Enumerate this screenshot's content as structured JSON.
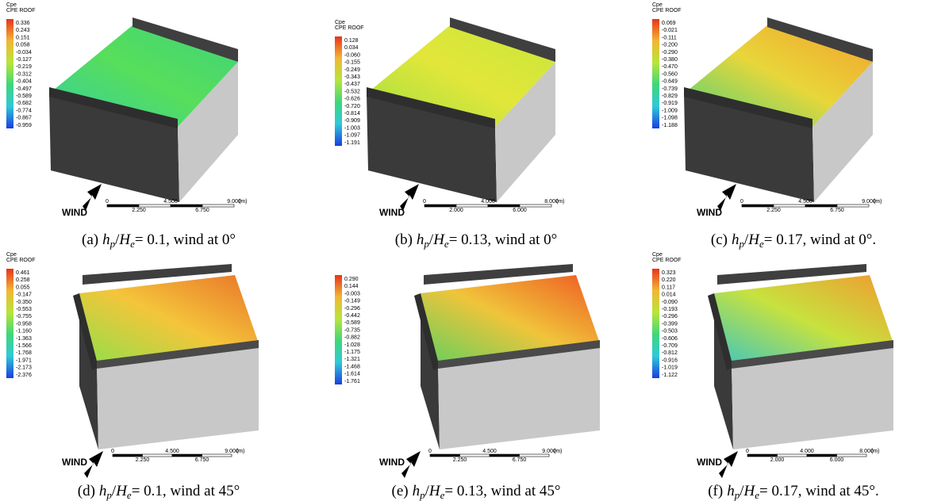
{
  "panels": [
    {
      "legend": {
        "header": [
          "Cpe",
          "CPE ROOF"
        ],
        "labels": [
          "0.336",
          "0.243",
          "0.151",
          "0.058",
          "-0.034",
          "-0.127",
          "-0.219",
          "-0.312",
          "-0.404",
          "-0.497",
          "-0.589",
          "-0.682",
          "-0.774",
          "-0.867",
          "-0.959"
        ]
      },
      "scale": {
        "labels": [
          "0",
          "2.250",
          "4.500",
          "6.750",
          "9.000"
        ],
        "unit": "(m)"
      },
      "wind": "WIND",
      "caption": {
        "label": "(a)",
        "var1": "h",
        "sub1": "p",
        "slash": "/",
        "var2": "H",
        "sub2": "e",
        "rest": "= 0.1, wind at 0°"
      }
    },
    {
      "legend": {
        "header": [
          "Cpe",
          "CPE ROOF"
        ],
        "labels": [
          "0.128",
          "0.034",
          "-0.060",
          "-0.155",
          "-0.249",
          "-0.343",
          "-0.437",
          "-0.532",
          "-0.626",
          "-0.720",
          "-0.814",
          "-0.909",
          "-1.003",
          "-1.097",
          "-1.191"
        ]
      },
      "scale": {
        "labels": [
          "0",
          "2.000",
          "4.000",
          "6.000",
          "8.000"
        ],
        "unit": "(m)"
      },
      "wind": "WIND",
      "caption": {
        "label": "(b)",
        "var1": "h",
        "sub1": "p",
        "slash": "/",
        "var2": "H",
        "sub2": "e",
        "rest": "= 0.13, wind at 0°"
      }
    },
    {
      "legend": {
        "header": [
          "Cpe",
          "CPE ROOF"
        ],
        "labels": [
          "0.069",
          "-0.021",
          "-0.111",
          "-0.200",
          "-0.290",
          "-0.380",
          "-0.470",
          "-0.560",
          "-0.649",
          "-0.739",
          "-0.829",
          "-0.919",
          "-1.009",
          "-1.098",
          "-1.188"
        ]
      },
      "scale": {
        "labels": [
          "0",
          "2.250",
          "4.500",
          "6.750",
          "9.000"
        ],
        "unit": "(m)"
      },
      "wind": "WIND",
      "caption": {
        "label": "(c)",
        "var1": "h",
        "sub1": "p",
        "slash": "/",
        "var2": "H",
        "sub2": "e",
        "rest": "= 0.17, wind at 0°."
      }
    },
    {
      "legend": {
        "header": [
          "Cpe",
          "CPE ROOF"
        ],
        "labels": [
          "0.461",
          "0.258",
          "0.055",
          "-0.147",
          "-0.350",
          "-0.553",
          "-0.755",
          "-0.958",
          "-1.160",
          "-1.363",
          "-1.566",
          "-1.768",
          "-1.971",
          "-2.173",
          "-2.376"
        ]
      },
      "scale": {
        "labels": [
          "0",
          "2.250",
          "4.500",
          "6.750",
          "9.000"
        ],
        "unit": "(m)"
      },
      "wind": "WIND",
      "caption": {
        "label": "(d)",
        "var1": "h",
        "sub1": "p",
        "slash": "/",
        "var2": "H",
        "sub2": "e",
        "rest": "= 0.1, wind at 45°"
      }
    },
    {
      "legend": {
        "labels": [
          "0.290",
          "0.144",
          "-0.003",
          "-0.149",
          "-0.296",
          "-0.442",
          "-0.589",
          "-0.735",
          "-0.882",
          "-1.028",
          "-1.175",
          "-1.321",
          "-1.468",
          "-1.614",
          "-1.761"
        ]
      },
      "scale": {
        "labels": [
          "0",
          "2.250",
          "4.500",
          "6.750",
          "9.000"
        ],
        "unit": "(m)"
      },
      "wind": "WIND",
      "caption": {
        "label": "(e)",
        "var1": "h",
        "sub1": "p",
        "slash": "/",
        "var2": "H",
        "sub2": "e",
        "rest": "= 0.13, wind at 45°"
      }
    },
    {
      "legend": {
        "header": [
          "Cpe",
          "CPE ROOF"
        ],
        "labels": [
          "0.323",
          "0.220",
          "0.117",
          "0.014",
          "-0.090",
          "-0.193",
          "-0.296",
          "-0.399",
          "-0.503",
          "-0.606",
          "-0.709",
          "-0.812",
          "-0.916",
          "-1.019",
          "-1.122"
        ]
      },
      "scale": {
        "labels": [
          "0",
          "2.000",
          "4.000",
          "6.000",
          "8.000"
        ],
        "unit": "(m)"
      },
      "wind": "WIND",
      "caption": {
        "label": "(f)",
        "var1": "h",
        "sub1": "p",
        "slash": "/",
        "var2": "H",
        "sub2": "e",
        "rest": "= 0.17, wind at 45°."
      }
    }
  ]
}
